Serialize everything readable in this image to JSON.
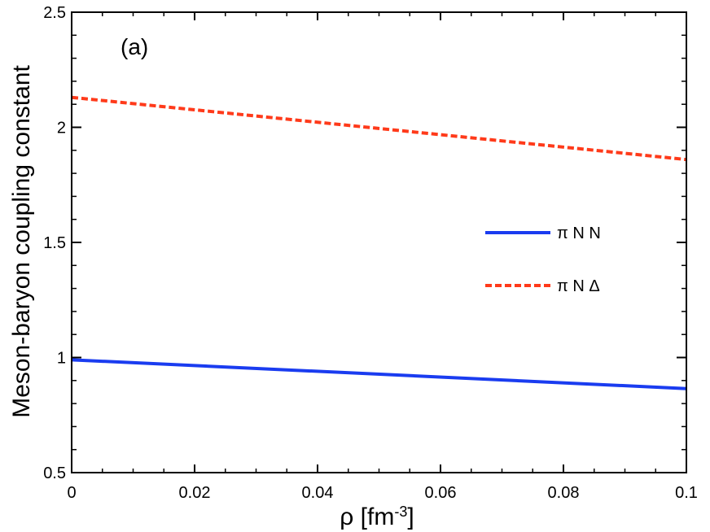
{
  "chart_data": {
    "type": "line",
    "panel_label": "(a)",
    "xlabel": "ρ [fm",
    "xlabel_sup": "-3",
    "xlabel_close": "]",
    "ylabel": "Meson-baryon coupling constant",
    "xlim": [
      0,
      0.1
    ],
    "ylim": [
      0.5,
      2.5
    ],
    "xticks": [
      "0",
      "0.02",
      "0.04",
      "0.06",
      "0.08",
      "0.1"
    ],
    "yticks": [
      "0.5",
      "1",
      "1.5",
      "2",
      "2.5"
    ],
    "grid": false,
    "legend_position": "right-middle",
    "series": [
      {
        "name": "π N N",
        "style": "solid",
        "color": "#1a3cf0",
        "x": [
          0,
          0.1
        ],
        "y": [
          0.99,
          0.865
        ]
      },
      {
        "name": "π N Δ",
        "style": "dashed",
        "color": "#ff3a1a",
        "x": [
          0,
          0.1
        ],
        "y": [
          2.13,
          1.86
        ]
      }
    ]
  }
}
